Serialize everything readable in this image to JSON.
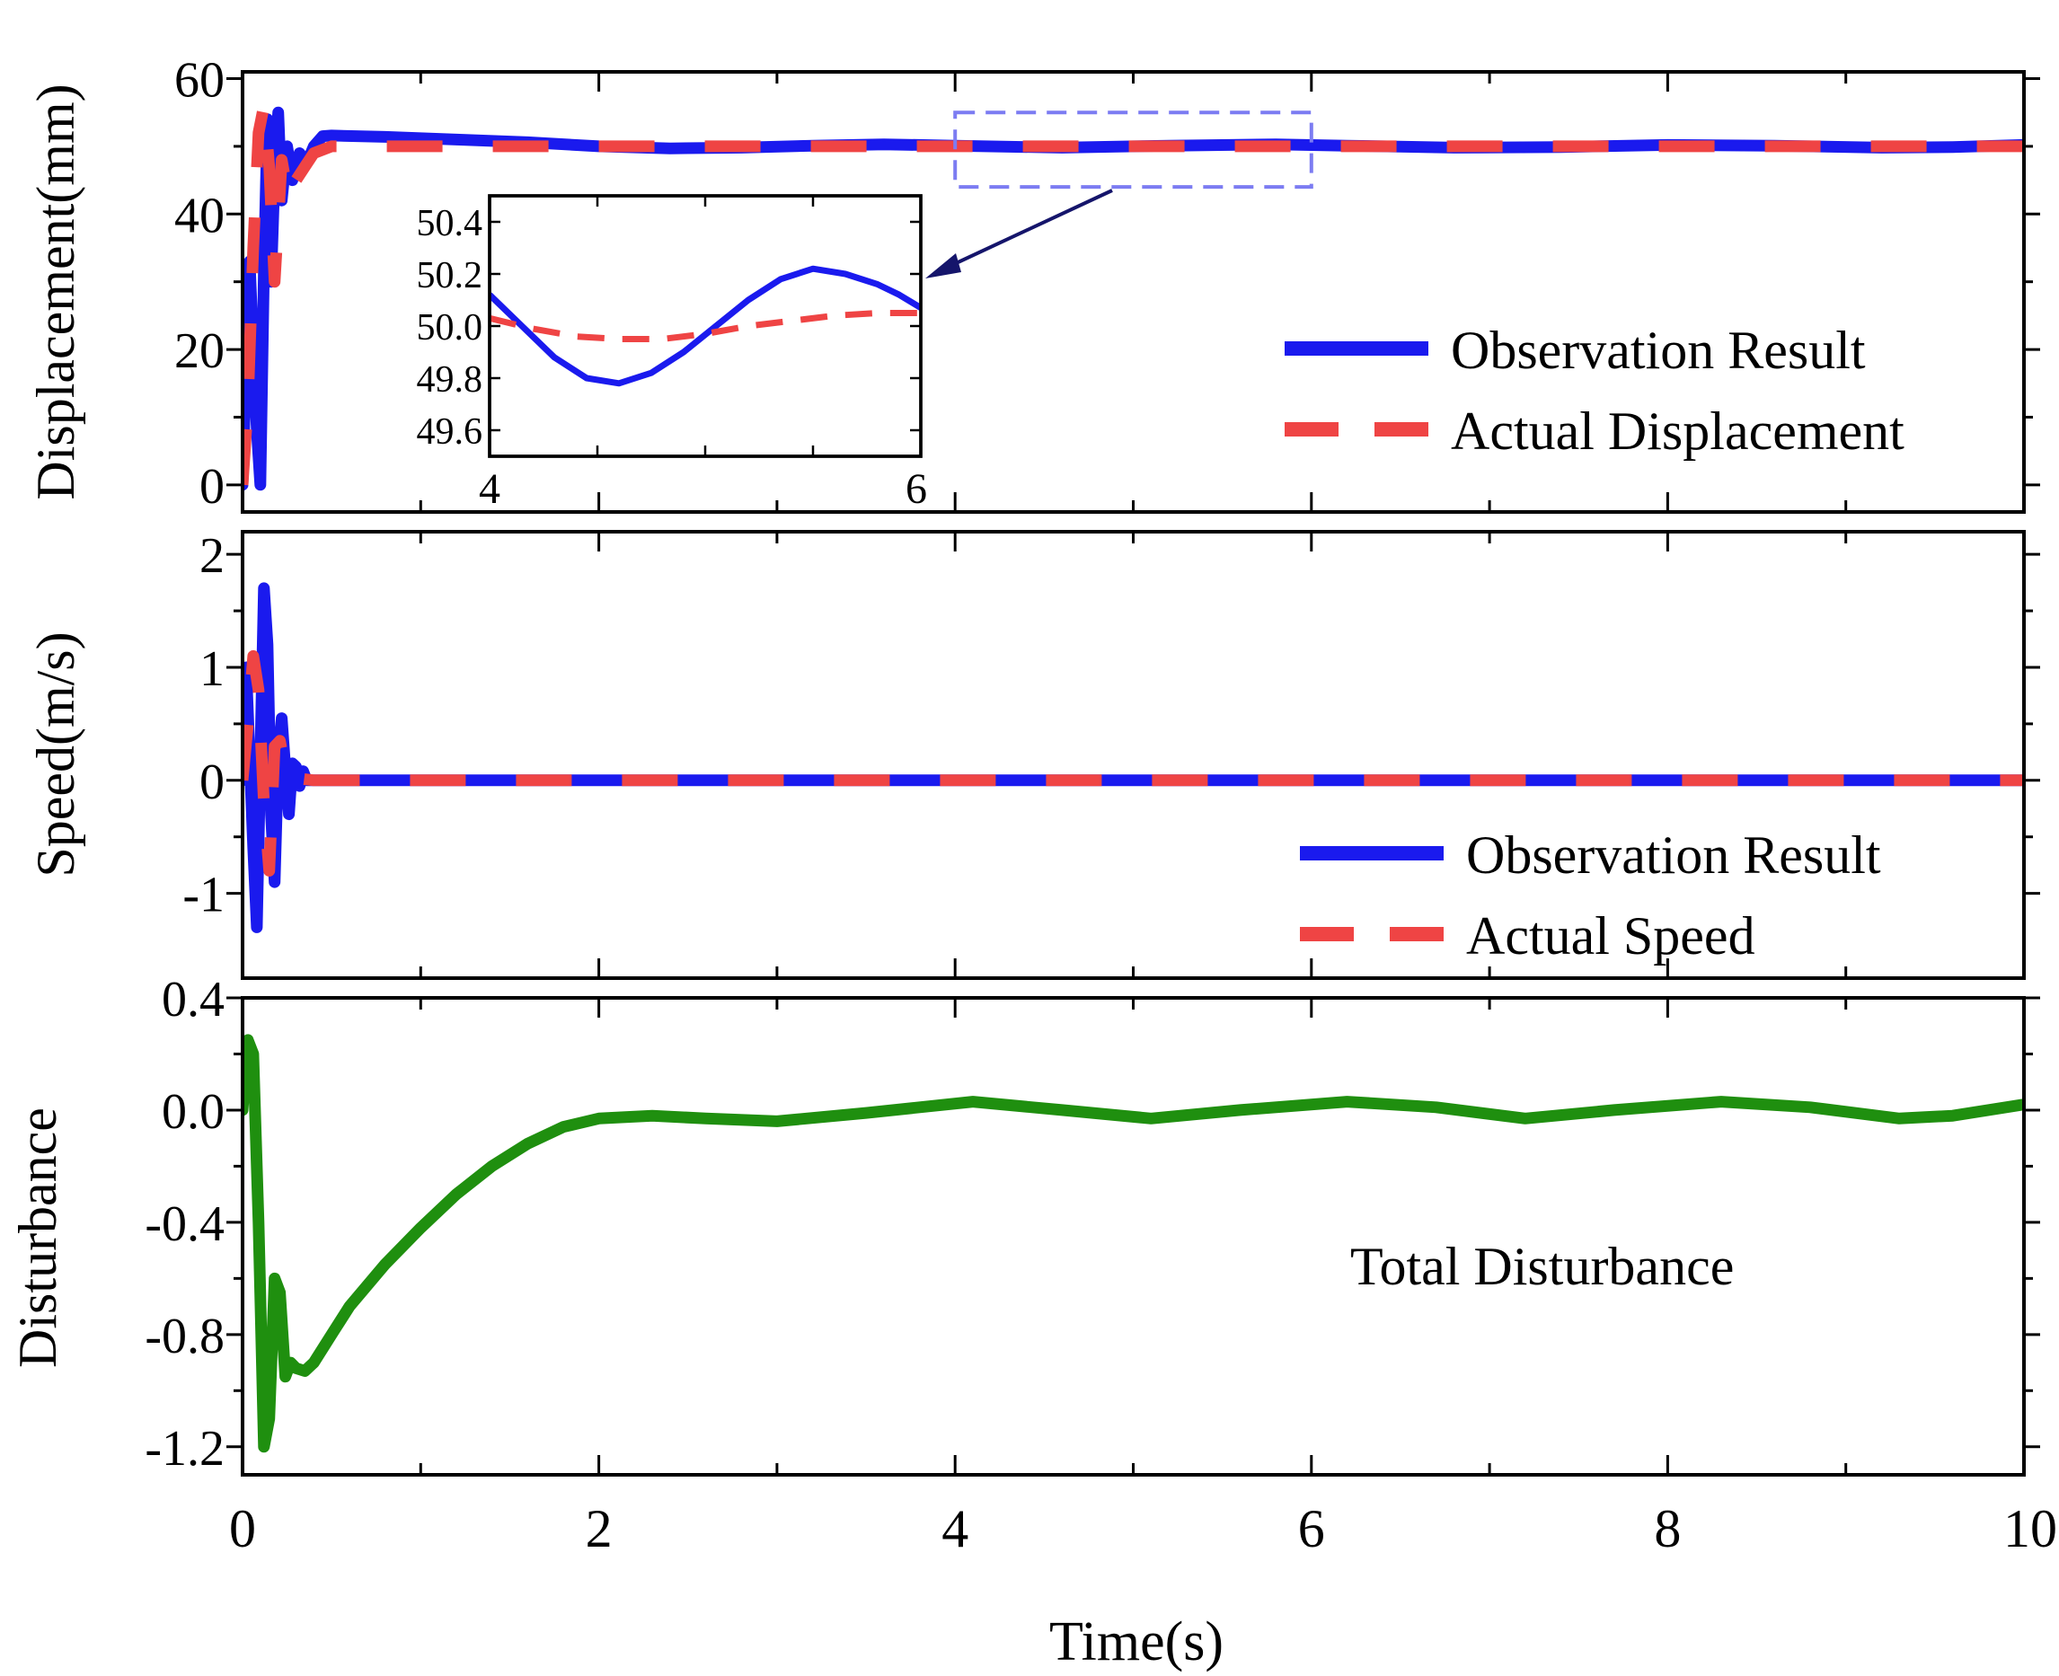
{
  "figure": {
    "x_axis": {
      "label": "Time(s)",
      "min": 0,
      "max": 10,
      "ticks": [
        0,
        2,
        4,
        6,
        8,
        10
      ],
      "tick_labels": [
        "0",
        "2",
        "4",
        "6",
        "8",
        "10"
      ],
      "minor_step": 1
    }
  },
  "chart_data": [
    {
      "type": "line",
      "id": "displacement",
      "ylabel": "Displacement(mm)",
      "ylim": [
        -4,
        61
      ],
      "yticks": [
        0,
        20,
        40,
        60
      ],
      "ytick_labels": [
        "0",
        "20",
        "40",
        "60"
      ],
      "legend_position": "bottom-right",
      "series": [
        {
          "name": "Observation Result",
          "color": "#1a1aee",
          "style": "solid",
          "x": [
            0.0,
            0.02,
            0.04,
            0.06,
            0.08,
            0.1,
            0.12,
            0.14,
            0.16,
            0.18,
            0.2,
            0.22,
            0.25,
            0.28,
            0.32,
            0.36,
            0.4,
            0.45,
            0.5,
            0.8,
            1.2,
            1.6,
            2.0,
            2.4,
            2.8,
            3.2,
            3.6,
            4.0,
            4.6,
            5.2,
            5.8,
            6.2,
            6.8,
            7.4,
            8.0,
            8.6,
            9.2,
            9.6,
            10.0
          ],
          "y": [
            0,
            18,
            33,
            20,
            8,
            0,
            32,
            54,
            30,
            46,
            55,
            42,
            50,
            45,
            49,
            47.5,
            50,
            51.5,
            51.6,
            51.4,
            51.0,
            50.6,
            50.0,
            49.7,
            49.8,
            50.1,
            50.3,
            50.1,
            49.8,
            50.1,
            50.3,
            50.1,
            49.8,
            49.9,
            50.2,
            50.1,
            49.8,
            49.9,
            50.2
          ]
        },
        {
          "name": "Actual Displacement",
          "color": "#ef4444",
          "style": "dashed",
          "x": [
            0.0,
            0.03,
            0.06,
            0.09,
            0.12,
            0.15,
            0.18,
            0.22,
            0.26,
            0.3,
            0.35,
            0.4,
            0.5,
            0.7,
            1.0,
            2.0,
            3.0,
            4.0,
            5.0,
            6.0,
            7.0,
            8.0,
            9.0,
            10.0
          ],
          "y": [
            0,
            12,
            35,
            52,
            56,
            47,
            30,
            48,
            42,
            45,
            47,
            49,
            50,
            50,
            50,
            50,
            50,
            50,
            50,
            50,
            50,
            50,
            50,
            50
          ]
        }
      ],
      "inset": {
        "x_range": [
          4,
          6
        ],
        "ylim": [
          49.5,
          50.5
        ],
        "xtick_labels": [
          "4",
          "6"
        ],
        "yticks": [
          49.6,
          49.8,
          50.0,
          50.2,
          50.4
        ],
        "ytick_labels": [
          "49.6",
          "49.8",
          "50.0",
          "50.2",
          "50.4"
        ],
        "zoom_box": {
          "x_range": [
            4,
            6
          ],
          "y_range": [
            44,
            55
          ]
        },
        "series": [
          {
            "name": "Observation Result",
            "x": [
              4.0,
              4.15,
              4.3,
              4.45,
              4.6,
              4.75,
              4.9,
              5.05,
              5.2,
              5.35,
              5.5,
              5.65,
              5.8,
              5.9,
              6.0
            ],
            "y": [
              50.12,
              50.0,
              49.88,
              49.8,
              49.78,
              49.82,
              49.9,
              50.0,
              50.1,
              50.18,
              50.22,
              50.2,
              50.16,
              50.12,
              50.07
            ]
          },
          {
            "name": "Actual Displacement",
            "x": [
              4.0,
              4.2,
              4.4,
              4.6,
              4.8,
              5.0,
              5.2,
              5.4,
              5.6,
              5.8,
              6.0
            ],
            "y": [
              50.03,
              49.99,
              49.96,
              49.95,
              49.95,
              49.97,
              50.0,
              50.02,
              50.04,
              50.05,
              50.05
            ]
          }
        ]
      }
    },
    {
      "type": "line",
      "id": "speed",
      "ylabel": "Speed(m/s)",
      "ylim": [
        -1.75,
        2.2
      ],
      "yticks": [
        -1,
        0,
        1,
        2
      ],
      "ytick_labels": [
        "-1",
        "0",
        "1",
        "2"
      ],
      "legend_position": "bottom-right",
      "series": [
        {
          "name": "Observation Result",
          "color": "#1a1aee",
          "style": "solid",
          "x": [
            0.0,
            0.02,
            0.04,
            0.06,
            0.08,
            0.1,
            0.12,
            0.14,
            0.16,
            0.18,
            0.2,
            0.22,
            0.24,
            0.26,
            0.28,
            0.3,
            0.32,
            0.34,
            0.36,
            0.4,
            0.5,
            10.0
          ],
          "y": [
            0,
            1.0,
            0.2,
            -0.6,
            -1.3,
            0.2,
            1.7,
            1.2,
            -0.3,
            -0.9,
            0.2,
            0.55,
            0.1,
            -0.3,
            0.15,
            0.12,
            -0.05,
            0.08,
            0.0,
            0.0,
            0.0,
            0.0
          ]
        },
        {
          "name": "Actual Speed",
          "color": "#ef4444",
          "style": "dashed",
          "x": [
            0.0,
            0.03,
            0.06,
            0.09,
            0.12,
            0.15,
            0.18,
            0.21,
            0.25,
            0.3,
            0.4,
            10.0
          ],
          "y": [
            0,
            0.5,
            1.1,
            0.8,
            -0.2,
            -0.8,
            0.3,
            0.35,
            0.0,
            0.02,
            0.0,
            0.0
          ]
        }
      ]
    },
    {
      "type": "line",
      "id": "disturbance",
      "ylabel": "Disturbance",
      "ylim": [
        -1.3,
        0.4
      ],
      "yticks": [
        -1.2,
        -0.8,
        -0.4,
        0.0,
        0.4
      ],
      "ytick_labels": [
        "-1.2",
        "-0.8",
        "-0.4",
        "0.0",
        "0.4"
      ],
      "annotation": "Total Disturbance",
      "series": [
        {
          "name": "Total Disturbance",
          "color": "#1f8f0f",
          "style": "solid",
          "x": [
            0.0,
            0.03,
            0.06,
            0.09,
            0.12,
            0.15,
            0.18,
            0.21,
            0.24,
            0.27,
            0.3,
            0.35,
            0.4,
            0.5,
            0.6,
            0.8,
            1.0,
            1.2,
            1.4,
            1.6,
            1.8,
            2.0,
            2.3,
            2.6,
            3.0,
            3.5,
            4.1,
            4.6,
            5.1,
            5.6,
            6.2,
            6.7,
            7.2,
            7.7,
            8.3,
            8.8,
            9.3,
            9.6,
            10.0
          ],
          "y": [
            0.0,
            0.25,
            0.2,
            -0.4,
            -1.2,
            -1.1,
            -0.6,
            -0.65,
            -0.95,
            -0.9,
            -0.92,
            -0.93,
            -0.9,
            -0.8,
            -0.7,
            -0.55,
            -0.42,
            -0.3,
            -0.2,
            -0.12,
            -0.06,
            -0.03,
            -0.02,
            -0.03,
            -0.04,
            -0.01,
            0.03,
            0.0,
            -0.03,
            0.0,
            0.03,
            0.01,
            -0.03,
            0.0,
            0.03,
            0.01,
            -0.03,
            -0.02,
            0.02
          ]
        }
      ]
    }
  ]
}
